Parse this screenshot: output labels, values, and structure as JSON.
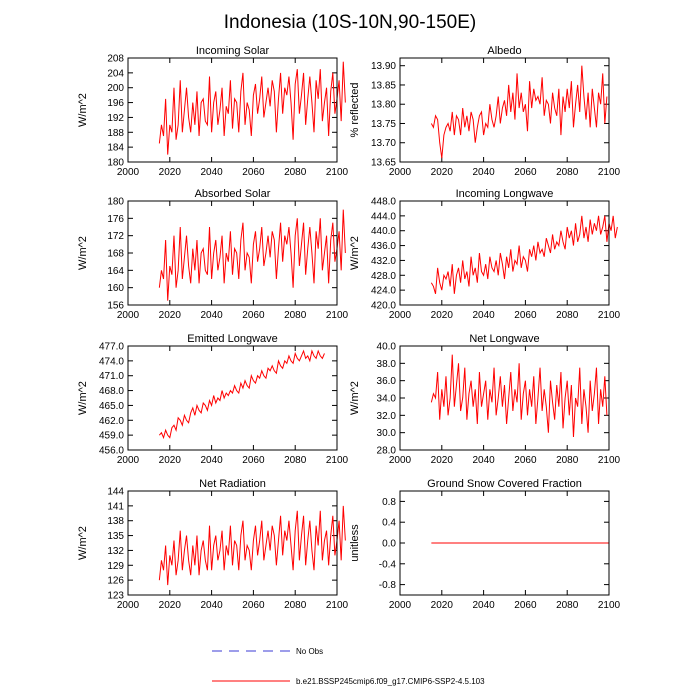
{
  "title": "Indonesia (10S-10N,90-150E)",
  "legend": {
    "obs_label": "No Obs",
    "model_label": "b.e21.BSSP245cmip6.f09_g17.CMIP6-SSP2-4.5.103",
    "obs_color": "#3b3bd6",
    "model_color": "#ff0000"
  },
  "chart_data": [
    {
      "type": "line",
      "title": "Incoming Solar",
      "ylabel": "W/m^2",
      "xlim": [
        2000,
        2100
      ],
      "xticks": [
        "2000",
        "2020",
        "2040",
        "2060",
        "2080",
        "2100"
      ],
      "ylim": [
        180,
        208
      ],
      "yticks": [
        "180",
        "184",
        "188",
        "192",
        "196",
        "200",
        "204",
        "208"
      ],
      "series": [
        {
          "name": "b.e21.BSSP245cmip6.f09_g17.CMIP6-SSP2-4.5.103",
          "color": "#ff0000",
          "x_start": 2015,
          "values": [
            185,
            190,
            187,
            197,
            182,
            190,
            188,
            200,
            186,
            190,
            202,
            188,
            194,
            200,
            192,
            188,
            196,
            190,
            199,
            187,
            196,
            197,
            191,
            190,
            203,
            188,
            196,
            199,
            190,
            194,
            200,
            187,
            195,
            193,
            202,
            189,
            197,
            196,
            188,
            199,
            204,
            190,
            196,
            194,
            187,
            198,
            201,
            193,
            197,
            203,
            192,
            196,
            200,
            195,
            202,
            199,
            188,
            197,
            204,
            193,
            200,
            198,
            203,
            196,
            186,
            201,
            205,
            193,
            198,
            204,
            190,
            197,
            203,
            196,
            188,
            202,
            197,
            205,
            191,
            196,
            200,
            187,
            199,
            204,
            193,
            197,
            202,
            191,
            207,
            196
          ]
        }
      ]
    },
    {
      "type": "line",
      "title": "Albedo",
      "ylabel": "% reflected",
      "xlim": [
        2000,
        2100
      ],
      "xticks": [
        "2000",
        "2020",
        "2040",
        "2060",
        "2080",
        "2100"
      ],
      "ylim": [
        13.65,
        13.92
      ],
      "yticks": [
        "13.65",
        "13.70",
        "13.75",
        "13.80",
        "13.85",
        "13.90"
      ],
      "series": [
        {
          "name": "b.e21.BSSP245cmip6.f09_g17.CMIP6-SSP2-4.5.103",
          "color": "#ff0000",
          "x_start": 2015,
          "values": [
            13.75,
            13.74,
            13.77,
            13.76,
            13.7,
            13.66,
            13.72,
            13.74,
            13.75,
            13.73,
            13.78,
            13.72,
            13.77,
            13.76,
            13.72,
            13.79,
            13.74,
            13.77,
            13.73,
            13.78,
            13.76,
            13.7,
            13.74,
            13.77,
            13.78,
            13.72,
            13.75,
            13.74,
            13.8,
            13.76,
            13.74,
            13.77,
            13.82,
            13.75,
            13.79,
            13.81,
            13.77,
            13.85,
            13.78,
            13.83,
            13.76,
            13.88,
            13.79,
            13.83,
            13.78,
            13.8,
            13.73,
            13.86,
            13.79,
            13.84,
            13.81,
            13.82,
            13.8,
            13.87,
            13.77,
            13.81,
            13.8,
            13.75,
            13.83,
            13.79,
            13.77,
            13.84,
            13.72,
            13.82,
            13.78,
            13.84,
            13.79,
            13.86,
            13.74,
            13.8,
            13.85,
            13.78,
            13.9,
            13.82,
            13.76,
            13.83,
            13.74,
            13.84,
            13.79,
            13.74,
            13.83,
            13.8,
            13.88,
            13.75,
            13.82
          ]
        }
      ]
    },
    {
      "type": "line",
      "title": "Absorbed Solar",
      "ylabel": "W/m^2",
      "xlim": [
        2000,
        2100
      ],
      "xticks": [
        "2000",
        "2020",
        "2040",
        "2060",
        "2080",
        "2100"
      ],
      "ylim": [
        156,
        180
      ],
      "yticks": [
        "156",
        "160",
        "164",
        "168",
        "172",
        "176",
        "180"
      ],
      "series": [
        {
          "name": "b.e21.BSSP245cmip6.f09_g17.CMIP6-SSP2-4.5.103",
          "color": "#ff0000",
          "x_start": 2015,
          "values": [
            160,
            164,
            162,
            171,
            157,
            165,
            163,
            172,
            160,
            164,
            174,
            162,
            167,
            172,
            165,
            161,
            169,
            164,
            171,
            161,
            168,
            169,
            164,
            163,
            174,
            162,
            168,
            171,
            164,
            167,
            172,
            161,
            168,
            166,
            173,
            163,
            169,
            168,
            162,
            171,
            175,
            164,
            168,
            167,
            161,
            170,
            173,
            166,
            169,
            174,
            165,
            168,
            172,
            167,
            173,
            171,
            162,
            169,
            175,
            166,
            172,
            170,
            174,
            168,
            160,
            172,
            176,
            165,
            170,
            175,
            163,
            169,
            174,
            168,
            161,
            173,
            169,
            176,
            164,
            168,
            172,
            161,
            171,
            175,
            166,
            169,
            173,
            164,
            178,
            168
          ]
        }
      ]
    },
    {
      "type": "line",
      "title": "Incoming Longwave",
      "ylabel": "W/m^2",
      "xlim": [
        2000,
        2100
      ],
      "xticks": [
        "2000",
        "2020",
        "2040",
        "2060",
        "2080",
        "2100"
      ],
      "ylim": [
        420,
        448
      ],
      "yticks": [
        "420.0",
        "424.0",
        "428.0",
        "432.0",
        "436.0",
        "440.0",
        "444.0",
        "448.0"
      ],
      "series": [
        {
          "name": "b.e21.BSSP245cmip6.f09_g17.CMIP6-SSP2-4.5.103",
          "color": "#ff0000",
          "x_start": 2015,
          "values": [
            426,
            425,
            423,
            430,
            426,
            424,
            428,
            427,
            429,
            425,
            431,
            423,
            428,
            430,
            426,
            432,
            427,
            429,
            425,
            433,
            428,
            430,
            426,
            434,
            429,
            428,
            431,
            427,
            433,
            430,
            429,
            432,
            428,
            434,
            431,
            427,
            433,
            430,
            435,
            429,
            432,
            431,
            436,
            430,
            433,
            432,
            429,
            435,
            433,
            436,
            432,
            437,
            434,
            435,
            433,
            438,
            436,
            434,
            439,
            435,
            437,
            436,
            440,
            437,
            435,
            441,
            438,
            440,
            436,
            442,
            437,
            439,
            444,
            438,
            441,
            437,
            443,
            439,
            442,
            440,
            444,
            439,
            441,
            444,
            437,
            442,
            440,
            444,
            438,
            441
          ]
        }
      ]
    },
    {
      "type": "line",
      "title": "Emitted Longwave",
      "ylabel": "W/m^2",
      "xlim": [
        2000,
        2100
      ],
      "xticks": [
        "2000",
        "2020",
        "2040",
        "2060",
        "2080",
        "2100"
      ],
      "ylim": [
        456,
        477
      ],
      "yticks": [
        "456.0",
        "459.0",
        "462.0",
        "465.0",
        "468.0",
        "471.0",
        "474.0",
        "477.0"
      ],
      "series": [
        {
          "name": "b.e21.BSSP245cmip6.f09_g17.CMIP6-SSP2-4.5.103",
          "color": "#ff0000",
          "x_start": 2015,
          "values": [
            459,
            459.5,
            458.5,
            460,
            459,
            458.5,
            460.5,
            461,
            460,
            462.5,
            462,
            461,
            463,
            462,
            461.5,
            463.5,
            464.5,
            463,
            465,
            464,
            463.5,
            465.5,
            465,
            464,
            466,
            465,
            467,
            465.5,
            466.5,
            466,
            468,
            466.5,
            467.5,
            467,
            468,
            467.5,
            469,
            468,
            467.5,
            469.5,
            468.5,
            470,
            469,
            468.5,
            471,
            470,
            469.5,
            471,
            470.5,
            472,
            471,
            470.5,
            472.5,
            472,
            473,
            472,
            471.5,
            474,
            473,
            472.5,
            474,
            473.5,
            475,
            474,
            473.5,
            475.5,
            474.5,
            474,
            475,
            476,
            474.5,
            475,
            474,
            476,
            475,
            474.5,
            476,
            475,
            474.5,
            475.5
          ]
        }
      ]
    },
    {
      "type": "line",
      "title": "Net Longwave",
      "ylabel": "W/m^2",
      "xlim": [
        2000,
        2100
      ],
      "xticks": [
        "2000",
        "2020",
        "2040",
        "2060",
        "2080",
        "2100"
      ],
      "ylim": [
        28,
        40
      ],
      "yticks": [
        "28.0",
        "30.0",
        "32.0",
        "34.0",
        "36.0",
        "38.0",
        "40.0"
      ],
      "series": [
        {
          "name": "b.e21.BSSP245cmip6.f09_g17.CMIP6-SSP2-4.5.103",
          "color": "#ff0000",
          "x_start": 2015,
          "values": [
            33.5,
            34.5,
            34,
            37,
            31.5,
            35,
            33,
            36.5,
            32,
            34,
            39,
            33,
            35.5,
            38,
            32.5,
            34,
            37.5,
            31.5,
            34.5,
            36,
            33,
            35,
            31,
            37,
            33,
            34.5,
            36,
            31.5,
            35,
            33.5,
            37.5,
            32,
            34,
            36.5,
            33,
            35.5,
            31,
            34,
            37,
            32.5,
            35,
            33.5,
            38,
            31.5,
            34.5,
            36,
            32,
            35,
            33,
            36.5,
            31,
            34,
            37.5,
            32.5,
            35,
            33,
            30,
            36,
            33.5,
            31.5,
            35.5,
            33,
            37,
            30.5,
            34,
            36,
            32,
            35.5,
            29.5,
            34,
            33,
            37.5,
            31,
            35,
            33,
            30,
            36,
            32.5,
            34.5,
            37.5,
            31,
            35,
            33,
            36.5,
            32
          ]
        }
      ]
    },
    {
      "type": "line",
      "title": "Net Radiation",
      "ylabel": "W/m^2",
      "xlim": [
        2000,
        2100
      ],
      "xticks": [
        "2000",
        "2020",
        "2040",
        "2060",
        "2080",
        "2100"
      ],
      "ylim": [
        123,
        144
      ],
      "yticks": [
        "123",
        "126",
        "129",
        "132",
        "135",
        "138",
        "141",
        "144"
      ],
      "series": [
        {
          "name": "b.e21.BSSP245cmip6.f09_g17.CMIP6-SSP2-4.5.103",
          "color": "#ff0000",
          "x_start": 2015,
          "values": [
            126,
            130,
            128,
            133,
            125,
            131,
            129,
            134,
            127,
            130,
            136,
            128,
            132,
            135,
            130,
            127,
            133,
            129,
            135,
            127,
            132,
            134,
            130,
            128,
            137,
            128,
            133,
            135,
            130,
            132,
            136,
            128,
            133,
            131,
            137,
            129,
            134,
            133,
            128,
            135,
            138,
            130,
            133,
            132,
            128,
            134,
            137,
            131,
            134,
            138,
            130,
            133,
            136,
            132,
            137,
            135,
            129,
            134,
            139,
            131,
            136,
            134,
            138,
            133,
            128,
            136,
            140,
            130,
            135,
            139,
            129,
            134,
            138,
            132,
            128,
            137,
            133,
            140,
            130,
            134,
            136,
            129,
            135,
            139,
            131,
            134,
            138,
            130,
            141,
            134
          ]
        }
      ]
    },
    {
      "type": "line",
      "title": "Ground Snow Covered Fraction",
      "ylabel": "unitless",
      "xlim": [
        2000,
        2100
      ],
      "xticks": [
        "2000",
        "2020",
        "2040",
        "2060",
        "2080",
        "2100"
      ],
      "ylim": [
        -1.0,
        1.0
      ],
      "yticks": [
        "-0.8",
        "-0.4",
        "0.0",
        "0.4",
        "0.8"
      ],
      "series": [
        {
          "name": "b.e21.BSSP245cmip6.f09_g17.CMIP6-SSP2-4.5.103",
          "color": "#ff0000",
          "x_start": 2015,
          "values": [
            0,
            0,
            0,
            0,
            0,
            0,
            0,
            0,
            0,
            0,
            0,
            0,
            0,
            0,
            0,
            0,
            0,
            0,
            0,
            0,
            0,
            0,
            0,
            0,
            0,
            0,
            0,
            0,
            0,
            0,
            0,
            0,
            0,
            0,
            0,
            0,
            0,
            0,
            0,
            0,
            0,
            0,
            0,
            0,
            0,
            0,
            0,
            0,
            0,
            0,
            0,
            0,
            0,
            0,
            0,
            0,
            0,
            0,
            0,
            0,
            0,
            0,
            0,
            0,
            0,
            0,
            0,
            0,
            0,
            0,
            0,
            0,
            0,
            0,
            0,
            0,
            0,
            0,
            0,
            0,
            0,
            0,
            0,
            0,
            0,
            0
          ]
        }
      ]
    }
  ]
}
